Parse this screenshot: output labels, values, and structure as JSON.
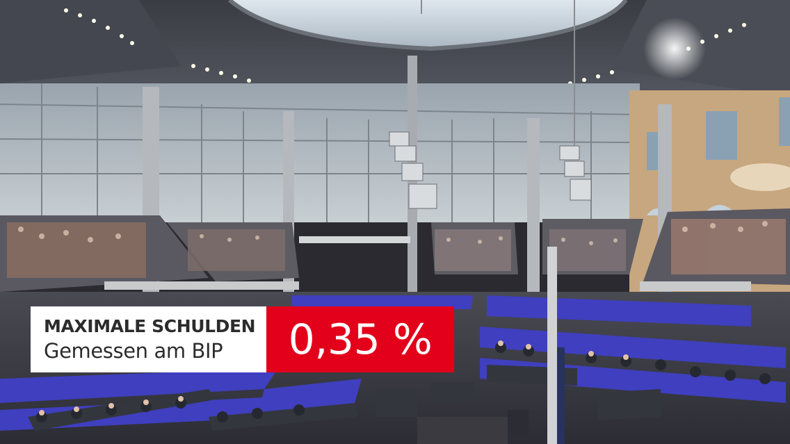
{
  "overlay": {
    "title": "MAXIMALE SCHULDEN",
    "subtitle": "Gemessen am BIP",
    "value": "0,35 %"
  },
  "colors": {
    "accent_red": "#e2001a",
    "panel_white": "#ffffff",
    "text_dark": "#2c2c2c",
    "seat_blue": "#3f3fbf"
  }
}
